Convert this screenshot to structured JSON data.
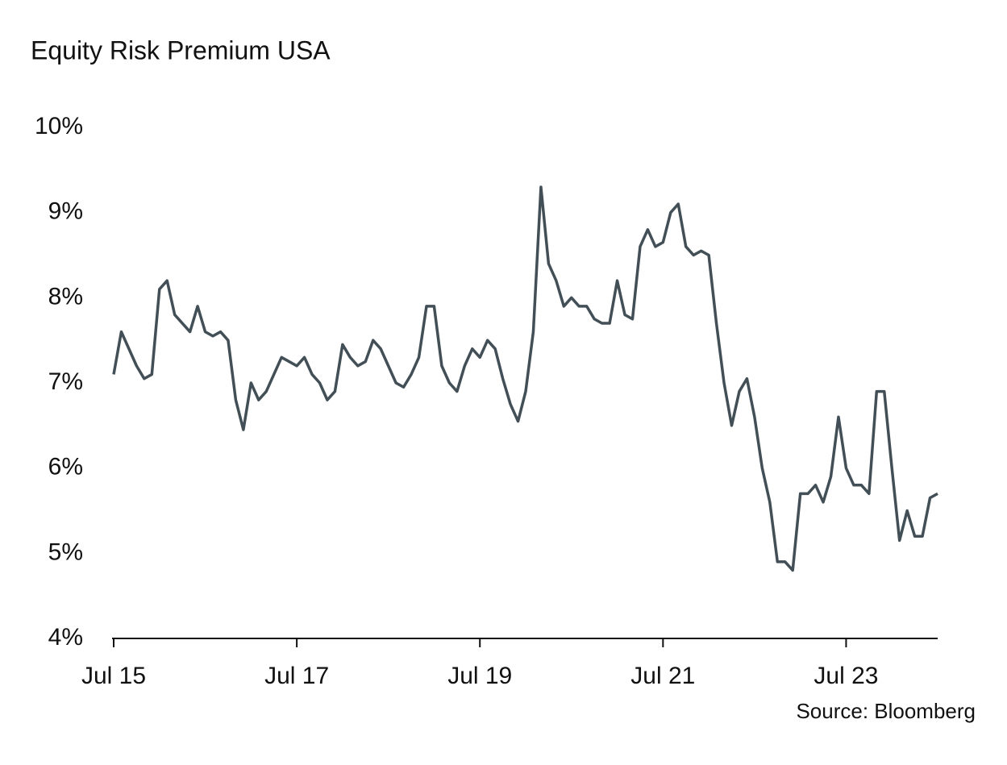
{
  "chart_data": {
    "type": "line",
    "title": "Equity Risk Premium USA",
    "source": "Source: Bloomberg",
    "x": [
      "2015-07",
      "2015-08",
      "2015-09",
      "2015-10",
      "2015-11",
      "2015-12",
      "2016-01",
      "2016-02",
      "2016-03",
      "2016-04",
      "2016-05",
      "2016-06",
      "2016-07",
      "2016-08",
      "2016-09",
      "2016-10",
      "2016-11",
      "2016-12",
      "2017-01",
      "2017-02",
      "2017-03",
      "2017-04",
      "2017-05",
      "2017-06",
      "2017-07",
      "2017-08",
      "2017-09",
      "2017-10",
      "2017-11",
      "2017-12",
      "2018-01",
      "2018-02",
      "2018-03",
      "2018-04",
      "2018-05",
      "2018-06",
      "2018-07",
      "2018-08",
      "2018-09",
      "2018-10",
      "2018-11",
      "2018-12",
      "2019-01",
      "2019-02",
      "2019-03",
      "2019-04",
      "2019-05",
      "2019-06",
      "2019-07",
      "2019-08",
      "2019-09",
      "2019-10",
      "2019-11",
      "2019-12",
      "2020-01",
      "2020-02",
      "2020-03",
      "2020-04",
      "2020-05",
      "2020-06",
      "2020-07",
      "2020-08",
      "2020-09",
      "2020-10",
      "2020-11",
      "2020-12",
      "2021-01",
      "2021-02",
      "2021-03",
      "2021-04",
      "2021-05",
      "2021-06",
      "2021-07",
      "2021-08",
      "2021-09",
      "2021-10",
      "2021-11",
      "2021-12",
      "2022-01",
      "2022-02",
      "2022-03",
      "2022-04",
      "2022-05",
      "2022-06",
      "2022-07",
      "2022-08",
      "2022-09",
      "2022-10",
      "2022-11",
      "2022-12",
      "2023-01",
      "2023-02",
      "2023-03",
      "2023-04",
      "2023-05",
      "2023-06",
      "2023-07",
      "2023-08",
      "2023-09",
      "2023-10",
      "2023-11",
      "2023-12",
      "2024-01",
      "2024-02",
      "2024-03",
      "2024-04",
      "2024-05",
      "2024-06",
      "2024-07"
    ],
    "series": [
      {
        "name": "Equity Risk Premium USA",
        "color": "#434f56",
        "values": [
          7.1,
          7.6,
          7.4,
          7.2,
          7.05,
          7.1,
          8.1,
          8.2,
          7.8,
          7.7,
          7.6,
          7.9,
          7.6,
          7.55,
          7.6,
          7.5,
          6.8,
          6.45,
          7.0,
          6.8,
          6.9,
          7.1,
          7.3,
          7.25,
          7.2,
          7.3,
          7.1,
          7.0,
          6.8,
          6.9,
          7.45,
          7.3,
          7.2,
          7.25,
          7.5,
          7.4,
          7.2,
          7.0,
          6.95,
          7.1,
          7.3,
          7.9,
          7.9,
          7.2,
          7.0,
          6.9,
          7.2,
          7.4,
          7.3,
          7.5,
          7.4,
          7.05,
          6.75,
          6.55,
          6.9,
          7.6,
          9.3,
          8.4,
          8.2,
          7.9,
          8.0,
          7.9,
          7.9,
          7.75,
          7.7,
          7.7,
          8.2,
          7.8,
          7.75,
          8.6,
          8.8,
          8.6,
          8.65,
          9.0,
          9.1,
          8.6,
          8.5,
          8.55,
          8.5,
          7.7,
          7.0,
          6.5,
          6.9,
          7.05,
          6.6,
          6.0,
          5.6,
          4.9,
          4.9,
          4.8,
          5.7,
          5.7,
          5.8,
          5.6,
          5.9,
          6.6,
          6.0,
          5.8,
          5.8,
          5.7,
          6.9,
          6.9,
          6.0,
          5.15,
          5.5,
          5.2,
          5.2,
          5.65,
          5.7
        ]
      }
    ],
    "xlim": [
      "2015-07",
      "2024-07"
    ],
    "xticks": [
      {
        "value": "2015-07",
        "label": "Jul 15"
      },
      {
        "value": "2017-07",
        "label": "Jul 17"
      },
      {
        "value": "2019-07",
        "label": "Jul 19"
      },
      {
        "value": "2021-07",
        "label": "Jul 21"
      },
      {
        "value": "2023-07",
        "label": "Jul 23"
      }
    ],
    "ylim": [
      4,
      10
    ],
    "yticks": [
      {
        "value": 4,
        "label": "4%"
      },
      {
        "value": 5,
        "label": "5%"
      },
      {
        "value": 6,
        "label": "6%"
      },
      {
        "value": 7,
        "label": "7%"
      },
      {
        "value": 8,
        "label": "8%"
      },
      {
        "value": 9,
        "label": "9%"
      },
      {
        "value": 10,
        "label": "10%"
      }
    ],
    "grid": false
  }
}
